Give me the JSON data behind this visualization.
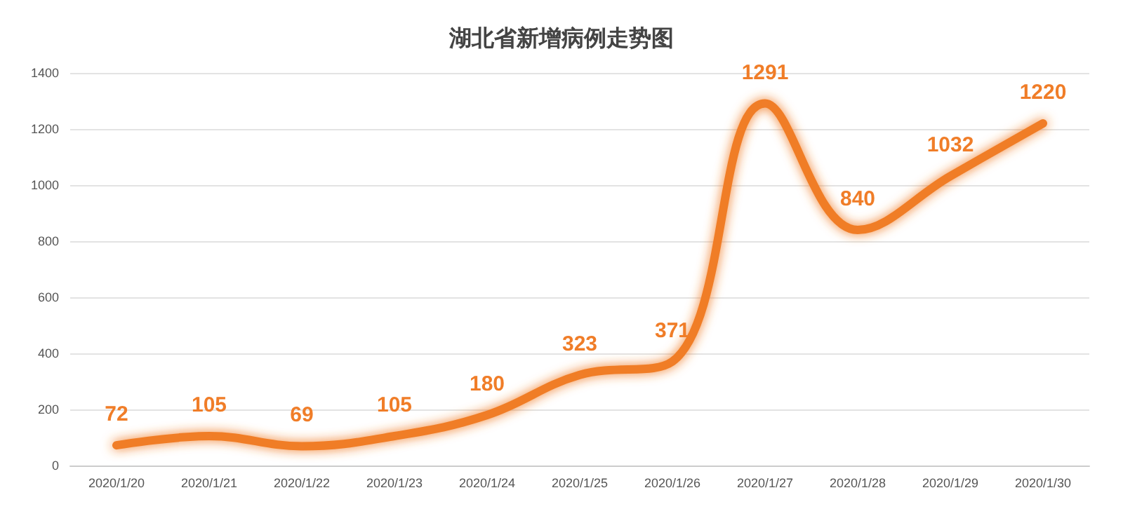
{
  "chart_data": {
    "type": "line",
    "title": "湖北省新增病例走势图",
    "categories": [
      "2020/1/20",
      "2020/1/21",
      "2020/1/22",
      "2020/1/23",
      "2020/1/24",
      "2020/1/25",
      "2020/1/26",
      "2020/1/27",
      "2020/1/28",
      "2020/1/29",
      "2020/1/30"
    ],
    "series": [
      {
        "color": "#f07d28",
        "values": [
          72,
          105,
          69,
          105,
          180,
          323,
          371,
          1291,
          840,
          1032,
          1220
        ]
      }
    ],
    "ylim": [
      0,
      1400
    ],
    "yticks": [
      0,
      200,
      400,
      600,
      800,
      1000,
      1200,
      1400
    ],
    "grid": "y",
    "data_labels": true,
    "marker": "circle",
    "line_style": "solid"
  }
}
